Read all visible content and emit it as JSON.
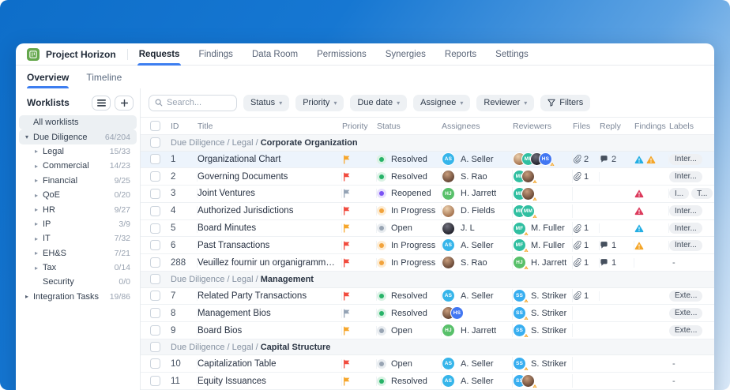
{
  "app": {
    "title": "Project Horizon",
    "nav_tabs": [
      {
        "label": "Requests",
        "active": true
      },
      {
        "label": "Findings",
        "active": false
      },
      {
        "label": "Data Room",
        "active": false
      },
      {
        "label": "Permissions",
        "active": false
      },
      {
        "label": "Synergies",
        "active": false
      },
      {
        "label": "Reports",
        "active": false
      },
      {
        "label": "Settings",
        "active": false
      }
    ],
    "sub_tabs": [
      {
        "label": "Overview",
        "active": true
      },
      {
        "label": "Timeline",
        "active": false
      }
    ]
  },
  "colors": {
    "accent_blue": "#3d7ef0",
    "logo_green": "#64a74c",
    "flag": {
      "orange": "#f6a62b",
      "red": "#f14b3e",
      "gray": "#94a3b5"
    },
    "status": {
      "resolved": {
        "dot": "#27b368",
        "ring": "#d9f2e4"
      },
      "reopened": {
        "dot": "#7a52f4",
        "ring": "#e7e0fd"
      },
      "inprogress": {
        "dot": "#f2a33c",
        "ring": "#fdecd3"
      },
      "open": {
        "dot": "#98a4b3",
        "ring": "#e8ecf0"
      }
    },
    "finding": {
      "cyan": "#24aee3",
      "amber": "#f4a62a",
      "red": "#dc3a5c"
    },
    "avatars": {
      "AS": "#36b5ea",
      "HJ": "#58c06a",
      "HS": "#4277f2",
      "MF": "#30bfa1",
      "MM": "#30bfa1",
      "SS": "#38aef0"
    }
  },
  "sidebar": {
    "title": "Worklists",
    "buttons": {
      "view_icon": "list-view",
      "add_icon": "plus"
    },
    "items": [
      {
        "label": "All worklists",
        "count": "",
        "arrow": "none",
        "indent": 0,
        "selected": true
      },
      {
        "label": "Due Diligence",
        "count": "64/204",
        "arrow": "down",
        "indent": 0,
        "selected": true
      },
      {
        "label": "Legal",
        "count": "15/33",
        "arrow": "right",
        "indent": 1,
        "selected": false
      },
      {
        "label": "Commercial",
        "count": "14/23",
        "arrow": "right",
        "indent": 1,
        "selected": false
      },
      {
        "label": "Financial",
        "count": "9/25",
        "arrow": "right",
        "indent": 1,
        "selected": false
      },
      {
        "label": "QoE",
        "count": "0/20",
        "arrow": "right",
        "indent": 1,
        "selected": false
      },
      {
        "label": "HR",
        "count": "9/27",
        "arrow": "right",
        "indent": 1,
        "selected": false
      },
      {
        "label": "IP",
        "count": "3/9",
        "arrow": "right",
        "indent": 1,
        "selected": false
      },
      {
        "label": "IT",
        "count": "7/32",
        "arrow": "right",
        "indent": 1,
        "selected": false
      },
      {
        "label": "EH&S",
        "count": "7/21",
        "arrow": "right",
        "indent": 1,
        "selected": false
      },
      {
        "label": "Tax",
        "count": "0/14",
        "arrow": "right",
        "indent": 1,
        "selected": false
      },
      {
        "label": "Security",
        "count": "0/0",
        "arrow": "none",
        "indent": 1,
        "selected": false
      },
      {
        "label": "Integration Tasks",
        "count": "19/86",
        "arrow": "right",
        "indent": 0,
        "selected": false
      }
    ]
  },
  "filters": {
    "search_placeholder": "Search...",
    "dropdowns": [
      "Status",
      "Priority",
      "Due date",
      "Assignee",
      "Reviewer"
    ],
    "filters_button": "Filters"
  },
  "table": {
    "columns": [
      "ID",
      "Title",
      "Priority",
      "Status",
      "Assignees",
      "Reviewers",
      "Files",
      "Reply",
      "Findings",
      "Labels"
    ],
    "groups": [
      {
        "crumb": "Due Diligence / Legal / ",
        "name": "Corporate Organization",
        "rows": [
          {
            "id": "1",
            "title": "Organizational Chart",
            "flag": "orange",
            "status": "Resolved",
            "stype": "resolved",
            "assignees": [
              "AS"
            ],
            "assignee_name": "A. Seller",
            "reviewers": [
              "photo-a",
              "MF",
              "photo-b",
              "HS"
            ],
            "reviewer_name": "",
            "rev_warn": true,
            "files": "2",
            "reply": "2",
            "findings": [
              "cyan",
              "amber"
            ],
            "labels": [
              "Inter..."
            ],
            "highlight": true
          },
          {
            "id": "2",
            "title": "Governing Documents",
            "flag": "red",
            "status": "Resolved",
            "stype": "resolved",
            "assignees": [
              "photo-c"
            ],
            "assignee_name": "S. Rao",
            "reviewers": [
              "MF",
              "photo-c"
            ],
            "reviewer_name": "",
            "rev_warn": true,
            "files": "1",
            "reply": "",
            "findings": [],
            "labels": [
              "Inter..."
            ],
            "highlight": false
          },
          {
            "id": "3",
            "title": "Joint Ventures",
            "flag": "gray",
            "status": "Reopened",
            "stype": "reopened",
            "assignees": [
              "HJ"
            ],
            "assignee_name": "H. Jarrett",
            "reviewers": [
              "MF",
              "photo-c"
            ],
            "reviewer_name": "",
            "rev_warn": true,
            "files": "",
            "reply": "",
            "findings": [
              "red"
            ],
            "labels": [
              "I...",
              "T..."
            ],
            "highlight": false
          },
          {
            "id": "4",
            "title": "Authorized Jurisdictions",
            "flag": "red",
            "status": "In Progress",
            "stype": "inprogress",
            "assignees": [
              "photo-a"
            ],
            "assignee_name": "D. Fields",
            "reviewers": [
              "MF",
              "MM"
            ],
            "reviewer_name": "",
            "rev_warn": true,
            "files": "",
            "reply": "",
            "findings": [
              "red"
            ],
            "labels": [
              "Inter..."
            ],
            "highlight": false
          },
          {
            "id": "5",
            "title": "Board Minutes",
            "flag": "orange",
            "status": "Open",
            "stype": "open",
            "assignees": [
              "photo-b"
            ],
            "assignee_name": "J. L",
            "reviewers": [
              "MF"
            ],
            "reviewer_name": "M. Fuller",
            "rev_warn": true,
            "files": "1",
            "reply": "",
            "findings": [
              "cyan"
            ],
            "labels": [
              "Inter..."
            ],
            "highlight": false
          },
          {
            "id": "6",
            "title": "Past Transactions",
            "flag": "red",
            "status": "In Progress",
            "stype": "inprogress",
            "assignees": [
              "AS"
            ],
            "assignee_name": "A. Seller",
            "reviewers": [
              "MF"
            ],
            "reviewer_name": "M. Fuller",
            "rev_warn": true,
            "files": "1",
            "reply": "1",
            "findings": [
              "amber"
            ],
            "labels": [
              "Inter..."
            ],
            "highlight": false
          },
          {
            "id": "288",
            "title": "Veuillez fournir un organigramme montra...",
            "flag": "red",
            "status": "In Progress",
            "stype": "inprogress",
            "assignees": [
              "photo-c"
            ],
            "assignee_name": "S. Rao",
            "reviewers": [
              "HJ"
            ],
            "reviewer_name": "H. Jarrett",
            "rev_warn": true,
            "files": "1",
            "reply": "1",
            "findings": [],
            "labels": [],
            "highlight": false
          }
        ]
      },
      {
        "crumb": "Due Diligence / Legal / ",
        "name": "Management",
        "rows": [
          {
            "id": "7",
            "title": "Related Party Transactions",
            "flag": "red",
            "status": "Resolved",
            "stype": "resolved",
            "assignees": [
              "AS"
            ],
            "assignee_name": "A. Seller",
            "reviewers": [
              "SS"
            ],
            "reviewer_name": "S. Striker",
            "rev_warn": true,
            "files": "1",
            "reply": "",
            "findings": [],
            "labels": [
              "Exte..."
            ],
            "highlight": false
          },
          {
            "id": "8",
            "title": "Management Bios",
            "flag": "gray",
            "status": "Resolved",
            "stype": "resolved",
            "assignees": [
              "photo-c",
              "HS"
            ],
            "assignee_name": "",
            "reviewers": [
              "SS"
            ],
            "reviewer_name": "S. Striker",
            "rev_warn": true,
            "files": "",
            "reply": "",
            "findings": [],
            "labels": [
              "Exte..."
            ],
            "highlight": false
          },
          {
            "id": "9",
            "title": "Board Bios",
            "flag": "orange",
            "status": "Open",
            "stype": "open",
            "assignees": [
              "HJ"
            ],
            "assignee_name": "H. Jarrett",
            "reviewers": [
              "SS"
            ],
            "reviewer_name": "S. Striker",
            "rev_warn": true,
            "files": "",
            "reply": "",
            "findings": [],
            "labels": [
              "Exte..."
            ],
            "highlight": false
          }
        ]
      },
      {
        "crumb": "Due Diligence / Legal / ",
        "name": "Capital Structure",
        "rows": [
          {
            "id": "10",
            "title": "Capitalization Table",
            "flag": "red",
            "status": "Open",
            "stype": "open",
            "assignees": [
              "AS"
            ],
            "assignee_name": "A. Seller",
            "reviewers": [
              "SS"
            ],
            "reviewer_name": "S. Striker",
            "rev_warn": true,
            "files": "",
            "reply": "",
            "findings": [],
            "labels": [],
            "highlight": false
          },
          {
            "id": "11",
            "title": "Equity Issuances",
            "flag": "orange",
            "status": "Resolved",
            "stype": "resolved",
            "assignees": [
              "AS"
            ],
            "assignee_name": "A. Seller",
            "reviewers": [
              "SS",
              "photo-c"
            ],
            "reviewer_name": "",
            "rev_warn": true,
            "files": "",
            "reply": "",
            "findings": [],
            "labels": [],
            "highlight": false
          }
        ]
      }
    ],
    "empty_label": "-"
  }
}
